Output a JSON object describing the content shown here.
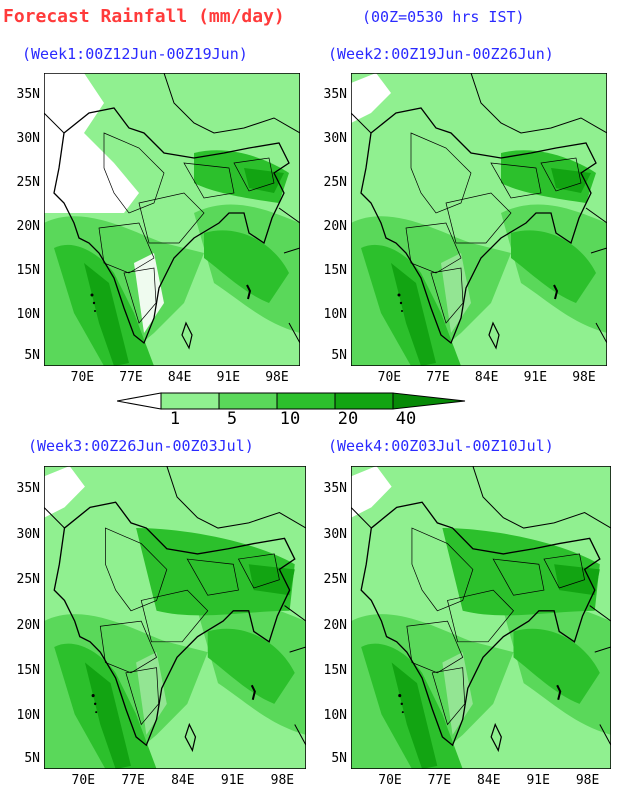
{
  "header": {
    "title": "Forecast Rainfall (mm/day)",
    "subtitle": "(00Z=0530 hrs IST)"
  },
  "panels": [
    {
      "label": "(Week1:00Z12Jun-00Z19Jun)"
    },
    {
      "label": "(Week2:00Z19Jun-00Z26Jun)"
    },
    {
      "label": "(Week3:00Z26Jun-00Z03Jul)"
    },
    {
      "label": "(Week4:00Z03Jul-00Z10Jul)"
    }
  ],
  "axes": {
    "lat_ticks": [
      "35N",
      "30N",
      "25N",
      "20N",
      "15N",
      "10N",
      "5N"
    ],
    "lon_ticks": [
      "70E",
      "77E",
      "84E",
      "91E",
      "98E"
    ]
  },
  "legend": {
    "levels": [
      "1",
      "5",
      "10",
      "20",
      "40"
    ],
    "colors": [
      "#ffffff",
      "#90f090",
      "#5ad85a",
      "#2cc02c",
      "#12a412",
      "#078a07"
    ]
  }
}
